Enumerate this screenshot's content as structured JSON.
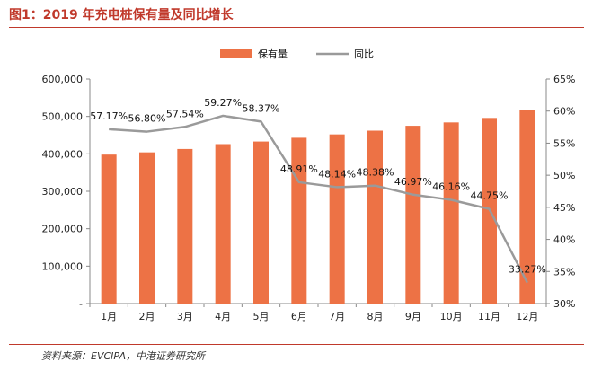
{
  "figure": {
    "title": "图1：2019 年充电桩保有量及同比增长",
    "source": "资料来源：EVCIPA，中港证券研究所"
  },
  "colors": {
    "bar": "#ED7245",
    "line": "#9A9A9A",
    "title": "#c0392b",
    "axis_text": "#222222"
  },
  "chart_data": {
    "type": "bar+line",
    "categories": [
      "1月",
      "2月",
      "3月",
      "4月",
      "5月",
      "6月",
      "7月",
      "8月",
      "9月",
      "10月",
      "11月",
      "12月"
    ],
    "series": [
      {
        "name": "保有量",
        "type": "bar",
        "axis": "left",
        "values": [
          398000,
          404000,
          413000,
          426000,
          433000,
          443000,
          452000,
          462000,
          475000,
          484000,
          496000,
          516000
        ]
      },
      {
        "name": "同比",
        "type": "line",
        "axis": "right",
        "values": [
          57.17,
          56.8,
          57.54,
          59.27,
          58.37,
          48.91,
          48.14,
          48.38,
          46.97,
          46.16,
          44.75,
          33.27
        ],
        "labels": [
          "57.17%",
          "56.80%",
          "57.54%",
          "59.27%",
          "58.37%",
          "48.91%",
          "48.14%",
          "48.38%",
          "46.97%",
          "46.16%",
          "44.75%",
          "33.27%"
        ]
      }
    ],
    "y_left": {
      "min": 0,
      "max": 600000,
      "ticks": [
        0,
        100000,
        200000,
        300000,
        400000,
        500000,
        600000
      ],
      "tick_labels": [
        "-",
        "100,000",
        "200,000",
        "300,000",
        "400,000",
        "500,000",
        "600,000"
      ]
    },
    "y_right": {
      "min": 30,
      "max": 65,
      "ticks": [
        30,
        35,
        40,
        45,
        50,
        55,
        60,
        65
      ],
      "tick_labels": [
        "30%",
        "35%",
        "40%",
        "45%",
        "50%",
        "55%",
        "60%",
        "65%"
      ]
    },
    "legend": {
      "position": "top",
      "entries": [
        "保有量",
        "同比"
      ]
    },
    "grid": false
  }
}
